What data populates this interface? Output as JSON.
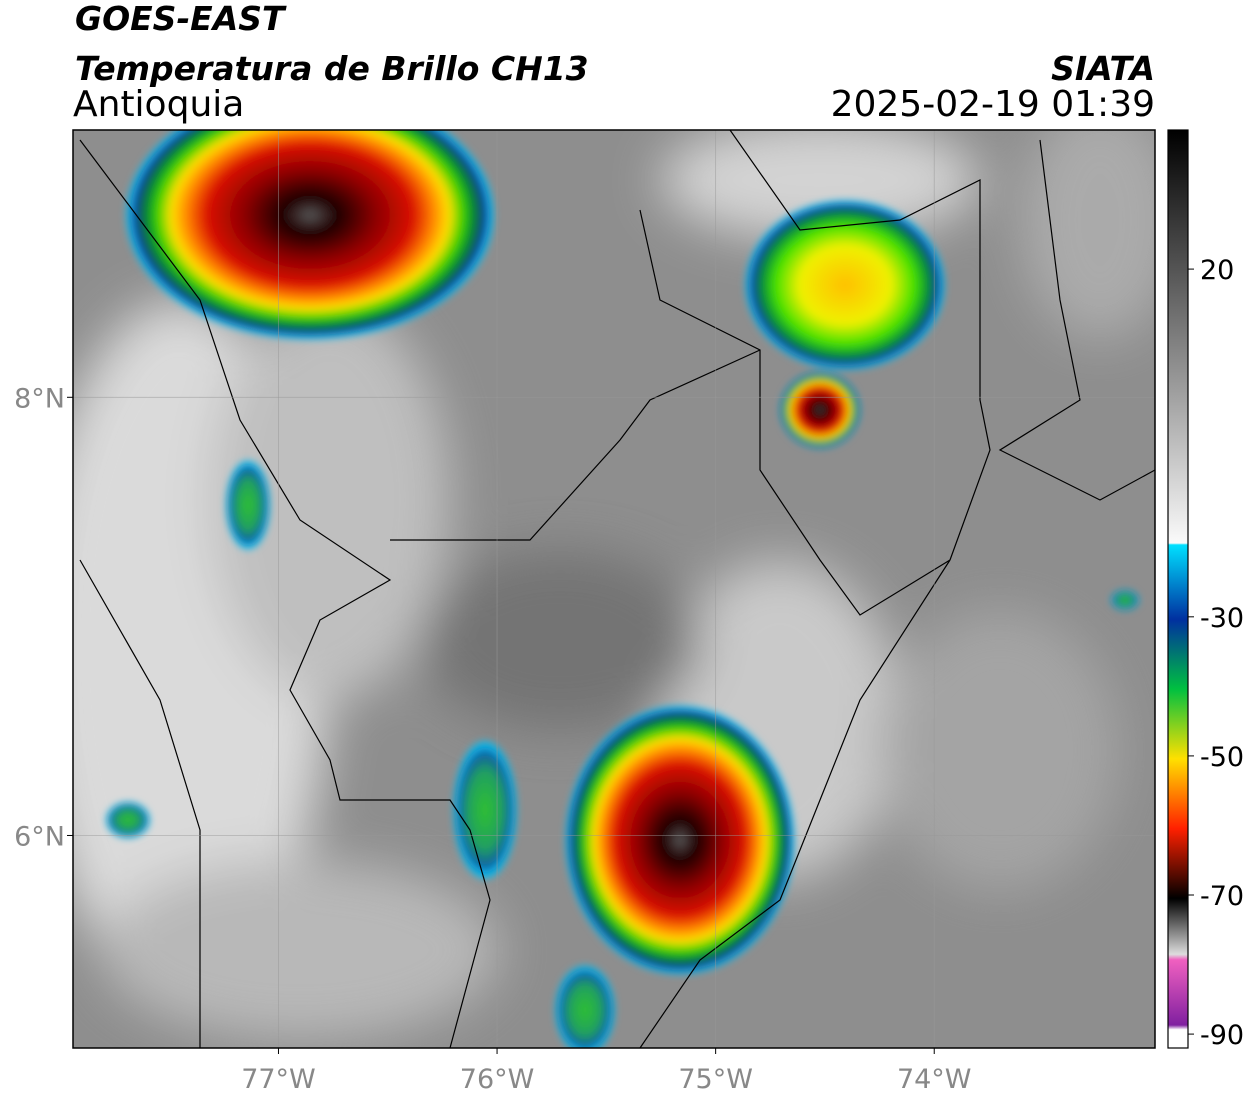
{
  "header": {
    "title": "GOES-EAST",
    "subtitle": "Temperatura de Brillo CH13",
    "region": "Antioquia",
    "org": "SIATA",
    "datetime": "2025-02-19 01:39"
  },
  "map": {
    "xlim": [
      -77.94,
      -72.99
    ],
    "ylim": [
      5.03,
      9.22
    ],
    "xticks": [
      {
        "value": -77,
        "label": "77°W"
      },
      {
        "value": -76,
        "label": "76°W"
      },
      {
        "value": -75,
        "label": "75°W"
      },
      {
        "value": -74,
        "label": "74°W"
      }
    ],
    "yticks": [
      {
        "value": 8,
        "label": "8°N"
      },
      {
        "value": 6,
        "label": "6°N"
      }
    ]
  },
  "colorbar": {
    "lim": [
      -92,
      40
    ],
    "ticks": [
      20,
      -30,
      -50,
      -70,
      -90
    ]
  }
}
